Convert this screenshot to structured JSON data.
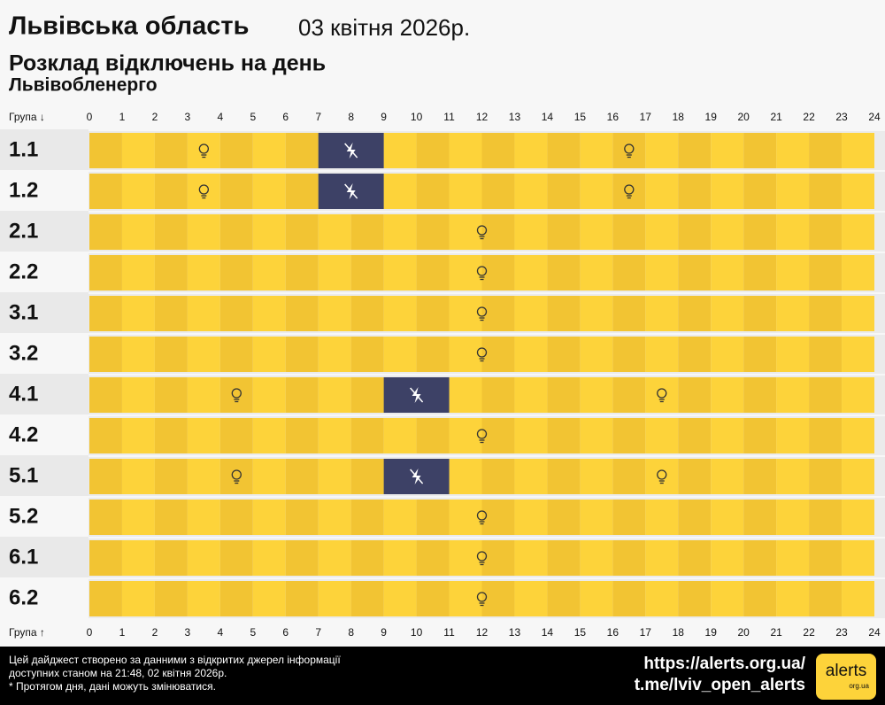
{
  "chart_data": {
    "type": "schedule",
    "title": "Львівська область",
    "date": "03 квітня 2026р.",
    "subtitle": "Розклад відключень на день",
    "provider": "Львівобленерго",
    "axis_label_top": "Група ↓",
    "axis_label_bottom": "Група ↑",
    "categories": [
      "1.1",
      "1.2",
      "2.1",
      "2.2",
      "3.1",
      "3.2",
      "4.1",
      "4.2",
      "5.1",
      "5.2",
      "6.1",
      "6.2"
    ],
    "outages": [
      [
        [
          7,
          9
        ]
      ],
      [
        [
          7,
          9
        ]
      ],
      [],
      [],
      [],
      [],
      [
        [
          9,
          11
        ]
      ],
      [],
      [
        [
          9,
          11
        ]
      ],
      [],
      [],
      []
    ],
    "xlim": [
      0,
      24
    ],
    "xticks": [
      0,
      1,
      2,
      3,
      4,
      5,
      6,
      7,
      8,
      9,
      10,
      11,
      12,
      13,
      14,
      15,
      16,
      17,
      18,
      19,
      20,
      21,
      22,
      23,
      24
    ],
    "color": "#3d4166",
    "footer": {
      "lines": [
        "Цей дайджест створено за данними з відкритих джерел інформації",
        "доступних станом на 21:48, 02 квітня 2026р.",
        "* Протягом дня, дані можуть змінюватися."
      ],
      "links": [
        "https://alerts.org.ua/",
        "t.me/lviv_open_alerts"
      ],
      "logo": "alerts",
      "logo_sub": "org.ua"
    }
  }
}
